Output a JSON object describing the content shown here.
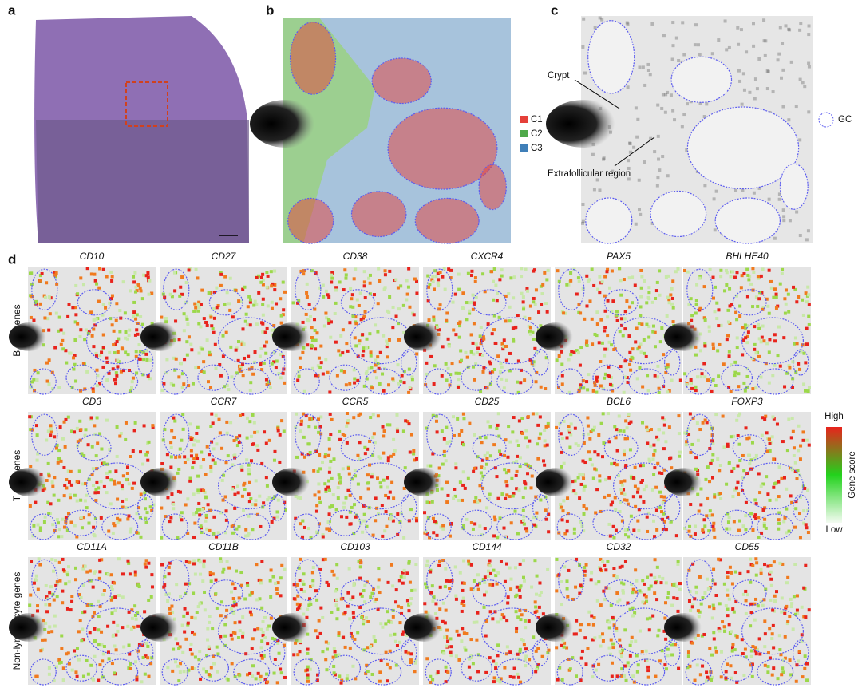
{
  "panels": {
    "a": {
      "label": "a"
    },
    "b": {
      "label": "b",
      "legend": [
        {
          "name": "C1",
          "color": "#e5403a"
        },
        {
          "name": "C2",
          "color": "#4fa94a"
        },
        {
          "name": "C3",
          "color": "#3f7fb8"
        }
      ]
    },
    "c": {
      "label": "c",
      "annotations": [
        "Crypt",
        "Extrafollicular region"
      ],
      "legend": "GC"
    },
    "d": {
      "label": "d",
      "rows": [
        {
          "label": "B cell genes",
          "genes": [
            "CD10",
            "CD27",
            "CD38",
            "CXCR4",
            "PAX5",
            "BHLHE40"
          ]
        },
        {
          "label": "T cell genes",
          "genes": [
            "CD3",
            "CCR7",
            "CCR5",
            "CD25",
            "BCL6",
            "FOXP3"
          ]
        },
        {
          "label": "Non-lymphocyte genes",
          "genes": [
            "CD11A",
            "CD11B",
            "CD103",
            "CD144",
            "CD32",
            "CD55"
          ]
        }
      ],
      "colorbar": {
        "high": "High",
        "low": "Low",
        "title": "Gene score"
      }
    }
  }
}
